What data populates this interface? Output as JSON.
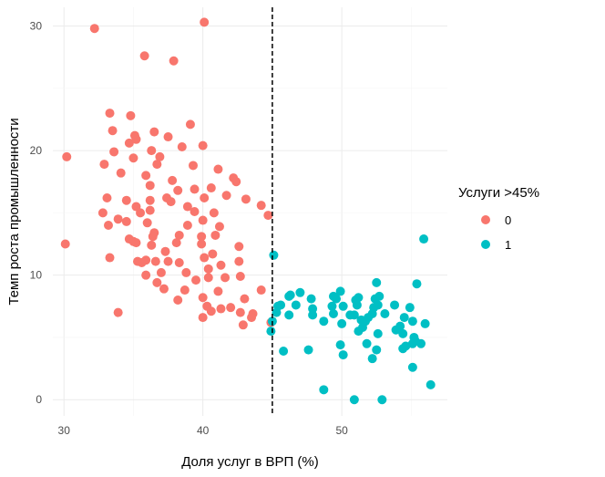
{
  "chart_data": {
    "type": "scatter",
    "title": "",
    "xlabel": "Доля услуг в ВРП (%)",
    "ylabel": "Темп роста промышленности",
    "xlim": [
      29.2,
      57.6
    ],
    "ylim": [
      -1.3,
      31.5
    ],
    "x_ticks": [
      30,
      40,
      50
    ],
    "y_ticks": [
      0,
      10,
      20,
      30
    ],
    "grid": true,
    "threshold_line": {
      "x": 45,
      "style": "dashed"
    },
    "legend": {
      "title": "Услуги >45%",
      "position": "right"
    },
    "series": [
      {
        "name": "0",
        "color": "#F8766D",
        "points": [
          [
            32.2,
            29.8
          ],
          [
            40.1,
            30.3
          ],
          [
            35.8,
            27.6
          ],
          [
            37.9,
            27.2
          ],
          [
            33.3,
            23.0
          ],
          [
            34.8,
            22.8
          ],
          [
            33.5,
            21.6
          ],
          [
            36.5,
            21.5
          ],
          [
            39.1,
            22.1
          ],
          [
            35.1,
            21.2
          ],
          [
            35.2,
            20.9
          ],
          [
            37.5,
            21.1
          ],
          [
            34.7,
            20.6
          ],
          [
            36.3,
            20.0
          ],
          [
            38.5,
            20.3
          ],
          [
            40.0,
            20.4
          ],
          [
            30.2,
            19.5
          ],
          [
            33.6,
            19.9
          ],
          [
            35.0,
            19.4
          ],
          [
            36.9,
            19.5
          ],
          [
            32.9,
            18.9
          ],
          [
            36.7,
            18.9
          ],
          [
            39.3,
            18.8
          ],
          [
            41.1,
            18.5
          ],
          [
            34.1,
            18.2
          ],
          [
            35.9,
            18.0
          ],
          [
            37.8,
            17.6
          ],
          [
            36.2,
            17.2
          ],
          [
            38.2,
            16.8
          ],
          [
            39.4,
            16.9
          ],
          [
            40.6,
            17.0
          ],
          [
            42.2,
            17.8
          ],
          [
            42.4,
            17.5
          ],
          [
            33.1,
            16.2
          ],
          [
            34.5,
            16.0
          ],
          [
            36.2,
            16.0
          ],
          [
            37.4,
            16.2
          ],
          [
            40.1,
            16.2
          ],
          [
            41.7,
            16.4
          ],
          [
            37.7,
            15.9
          ],
          [
            38.9,
            15.5
          ],
          [
            35.2,
            15.5
          ],
          [
            39.4,
            15.1
          ],
          [
            43.1,
            16.1
          ],
          [
            44.2,
            15.6
          ],
          [
            32.8,
            15.0
          ],
          [
            35.5,
            15.0
          ],
          [
            36.2,
            15.2
          ],
          [
            40.8,
            15.0
          ],
          [
            44.7,
            14.8
          ],
          [
            33.9,
            14.5
          ],
          [
            34.5,
            14.3
          ],
          [
            40.0,
            14.4
          ],
          [
            36.0,
            14.2
          ],
          [
            33.2,
            14.0
          ],
          [
            38.9,
            14.0
          ],
          [
            41.2,
            13.9
          ],
          [
            36.5,
            13.4
          ],
          [
            38.3,
            13.2
          ],
          [
            39.9,
            13.1
          ],
          [
            40.9,
            13.2
          ],
          [
            36.4,
            13.1
          ],
          [
            34.7,
            12.9
          ],
          [
            35.0,
            12.7
          ],
          [
            35.2,
            12.6
          ],
          [
            38.1,
            12.6
          ],
          [
            39.9,
            12.5
          ],
          [
            42.6,
            12.3
          ],
          [
            30.1,
            12.5
          ],
          [
            36.3,
            12.4
          ],
          [
            37.3,
            11.9
          ],
          [
            40.7,
            11.7
          ],
          [
            40.1,
            11.4
          ],
          [
            33.3,
            11.4
          ],
          [
            35.3,
            11.1
          ],
          [
            35.6,
            11.0
          ],
          [
            35.9,
            11.2
          ],
          [
            36.6,
            11.1
          ],
          [
            37.5,
            11.1
          ],
          [
            38.3,
            11.0
          ],
          [
            42.6,
            11.1
          ],
          [
            41.3,
            10.8
          ],
          [
            40.4,
            10.5
          ],
          [
            37.0,
            10.2
          ],
          [
            35.9,
            10.0
          ],
          [
            38.8,
            10.2
          ],
          [
            40.4,
            9.8
          ],
          [
            41.6,
            9.8
          ],
          [
            42.7,
            9.9
          ],
          [
            39.5,
            9.6
          ],
          [
            36.7,
            9.4
          ],
          [
            37.2,
            8.9
          ],
          [
            38.7,
            8.8
          ],
          [
            41.1,
            8.7
          ],
          [
            44.2,
            8.8
          ],
          [
            40.0,
            8.2
          ],
          [
            43.0,
            8.1
          ],
          [
            38.2,
            8.0
          ],
          [
            42.0,
            7.4
          ],
          [
            40.3,
            7.5
          ],
          [
            40.6,
            7.1
          ],
          [
            41.3,
            7.3
          ],
          [
            42.7,
            7.0
          ],
          [
            43.6,
            6.9
          ],
          [
            33.9,
            7.0
          ],
          [
            40.0,
            6.6
          ],
          [
            43.5,
            6.6
          ],
          [
            42.9,
            6.0
          ],
          [
            44.9,
            6.2
          ]
        ]
      },
      {
        "name": "1",
        "color": "#00BFC4",
        "points": [
          [
            45.1,
            11.6
          ],
          [
            55.9,
            12.9
          ],
          [
            55.4,
            9.3
          ],
          [
            52.5,
            9.4
          ],
          [
            49.9,
            8.7
          ],
          [
            51.2,
            8.2
          ],
          [
            46.2,
            8.3
          ],
          [
            46.3,
            8.4
          ],
          [
            47.0,
            8.6
          ],
          [
            47.8,
            8.1
          ],
          [
            49.4,
            8.3
          ],
          [
            49.6,
            8.1
          ],
          [
            52.7,
            8.3
          ],
          [
            52.4,
            8.1
          ],
          [
            51.0,
            8.0
          ],
          [
            52.6,
            7.6
          ],
          [
            52.3,
            7.4
          ],
          [
            51.1,
            7.6
          ],
          [
            45.4,
            7.5
          ],
          [
            45.6,
            7.6
          ],
          [
            46.7,
            7.6
          ],
          [
            47.9,
            7.3
          ],
          [
            49.3,
            7.5
          ],
          [
            50.1,
            7.5
          ],
          [
            53.8,
            7.6
          ],
          [
            54.9,
            7.4
          ],
          [
            45.3,
            7.0
          ],
          [
            46.2,
            6.8
          ],
          [
            47.9,
            6.8
          ],
          [
            49.4,
            6.9
          ],
          [
            50.6,
            6.8
          ],
          [
            50.9,
            6.8
          ],
          [
            51.9,
            6.6
          ],
          [
            52.2,
            6.9
          ],
          [
            53.1,
            6.9
          ],
          [
            54.5,
            6.6
          ],
          [
            54.2,
            5.9
          ],
          [
            55.1,
            6.3
          ],
          [
            56.0,
            6.1
          ],
          [
            48.7,
            6.3
          ],
          [
            51.4,
            6.4
          ],
          [
            51.7,
            6.3
          ],
          [
            50.0,
            6.1
          ],
          [
            51.5,
            5.8
          ],
          [
            51.2,
            5.5
          ],
          [
            52.6,
            5.3
          ],
          [
            53.9,
            5.6
          ],
          [
            54.4,
            5.3
          ],
          [
            44.9,
            5.5
          ],
          [
            45.0,
            6.3
          ],
          [
            55.2,
            5.0
          ],
          [
            55.7,
            4.5
          ],
          [
            55.1,
            4.5
          ],
          [
            55.3,
            4.7
          ],
          [
            51.8,
            4.5
          ],
          [
            49.9,
            4.4
          ],
          [
            54.6,
            4.3
          ],
          [
            54.4,
            4.1
          ],
          [
            52.5,
            4.0
          ],
          [
            47.6,
            4.0
          ],
          [
            45.8,
            3.9
          ],
          [
            50.1,
            3.6
          ],
          [
            52.2,
            3.3
          ],
          [
            55.1,
            2.6
          ],
          [
            56.4,
            1.2
          ],
          [
            48.7,
            0.8
          ],
          [
            50.9,
            0.0
          ],
          [
            52.9,
            0.0
          ]
        ]
      }
    ]
  }
}
